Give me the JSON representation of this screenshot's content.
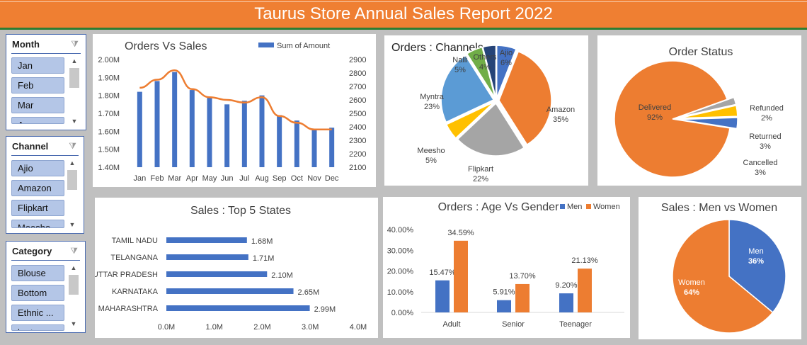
{
  "report_title": "Taurus Store Annual Sales Report 2022",
  "slicers": [
    {
      "name": "Month",
      "items": [
        "Jan",
        "Feb",
        "Mar",
        "Apr"
      ]
    },
    {
      "name": "Channel",
      "items": [
        "Ajio",
        "Amazon",
        "Flipkart",
        "Meesho"
      ]
    },
    {
      "name": "Category",
      "items": [
        "Blouse",
        "Bottom",
        "Ethnic ...",
        "kurta"
      ]
    }
  ],
  "colors": {
    "blue": "#4472c4",
    "orange": "#ed7d31",
    "gray": "#a5a5a5",
    "gold": "#ffc000",
    "lightblue": "#5b9bd5",
    "green": "#70ad47",
    "navy": "#264478"
  },
  "chart_data": [
    {
      "type": "bar",
      "title": "Orders Vs Sales",
      "categories": [
        "Jan",
        "Feb",
        "Mar",
        "Apr",
        "May",
        "Jun",
        "Jul",
        "Aug",
        "Sep",
        "Oct",
        "Nov",
        "Dec"
      ],
      "series": [
        {
          "name": "Sum of Amount",
          "type": "bar",
          "axis": "left",
          "values": [
            1.82,
            1.88,
            1.93,
            1.83,
            1.79,
            1.75,
            1.77,
            1.8,
            1.69,
            1.66,
            1.61,
            1.62
          ]
        },
        {
          "type": "line",
          "axis": "right",
          "values": [
            2690,
            2750,
            2820,
            2680,
            2620,
            2600,
            2580,
            2620,
            2480,
            2430,
            2380,
            2380
          ]
        }
      ],
      "y_left": {
        "ticks": [
          "1.40M",
          "1.50M",
          "1.60M",
          "1.70M",
          "1.80M",
          "1.90M",
          "2.00M"
        ],
        "min": 1.4,
        "max": 2.0
      },
      "y_right": {
        "ticks": [
          "2100",
          "2200",
          "2300",
          "2400",
          "2500",
          "2600",
          "2700",
          "2800",
          "2900"
        ],
        "min": 2100,
        "max": 2900
      },
      "legend": "top-right"
    },
    {
      "type": "pie",
      "title": "Orders : Channels",
      "slices": [
        {
          "label": "Ajio",
          "value": 6,
          "pct": "6%"
        },
        {
          "label": "Amazon",
          "value": 35,
          "pct": "35%"
        },
        {
          "label": "Flipkart",
          "value": 22,
          "pct": "22%"
        },
        {
          "label": "Meesho",
          "value": 5,
          "pct": "5%"
        },
        {
          "label": "Myntra",
          "value": 23,
          "pct": "23%"
        },
        {
          "label": "Nalli",
          "value": 5,
          "pct": "5%"
        },
        {
          "label": "Others",
          "value": 4,
          "pct": "4%"
        }
      ]
    },
    {
      "type": "pie",
      "title": "Order Status",
      "slices": [
        {
          "label": "Delivered",
          "value": 92,
          "pct": "92%"
        },
        {
          "label": "Refunded",
          "value": 2,
          "pct": "2%"
        },
        {
          "label": "Returned",
          "value": 3,
          "pct": "3%"
        },
        {
          "label": "Cancelled",
          "value": 3,
          "pct": "3%"
        }
      ]
    },
    {
      "type": "bar",
      "orientation": "horizontal",
      "title": "Sales : Top 5 States",
      "categories": [
        "TAMIL NADU",
        "TELANGANA",
        "UTTAR PRADESH",
        "KARNATAKA",
        "MAHARASHTRA"
      ],
      "values": [
        1.68,
        1.71,
        2.1,
        2.65,
        2.99
      ],
      "labels": [
        "1.68M",
        "1.71M",
        "2.10M",
        "2.65M",
        "2.99M"
      ],
      "x_ticks": [
        "0.0M",
        "1.0M",
        "2.0M",
        "3.0M",
        "4.0M"
      ],
      "xlim": [
        0,
        4
      ]
    },
    {
      "type": "bar",
      "title": "Orders : Age Vs Gender",
      "categories": [
        "Adult",
        "Senior",
        "Teenager"
      ],
      "series": [
        {
          "name": "Men",
          "values": [
            15.47,
            5.91,
            9.2
          ],
          "labels": [
            "15.47%",
            "5.91%",
            "9.20%"
          ]
        },
        {
          "name": "Women",
          "values": [
            34.59,
            13.7,
            21.13
          ],
          "labels": [
            "34.59%",
            "13.70%",
            "21.13%"
          ]
        }
      ],
      "y_ticks": [
        "0.00%",
        "10.00%",
        "20.00%",
        "30.00%",
        "40.00%"
      ],
      "ylim": [
        0,
        40
      ],
      "legend": "top-right"
    },
    {
      "type": "pie",
      "title": "Sales : Men vs Women",
      "slices": [
        {
          "label": "Men",
          "value": 36,
          "pct": "36%"
        },
        {
          "label": "Women",
          "value": 64,
          "pct": "64%"
        }
      ]
    }
  ]
}
